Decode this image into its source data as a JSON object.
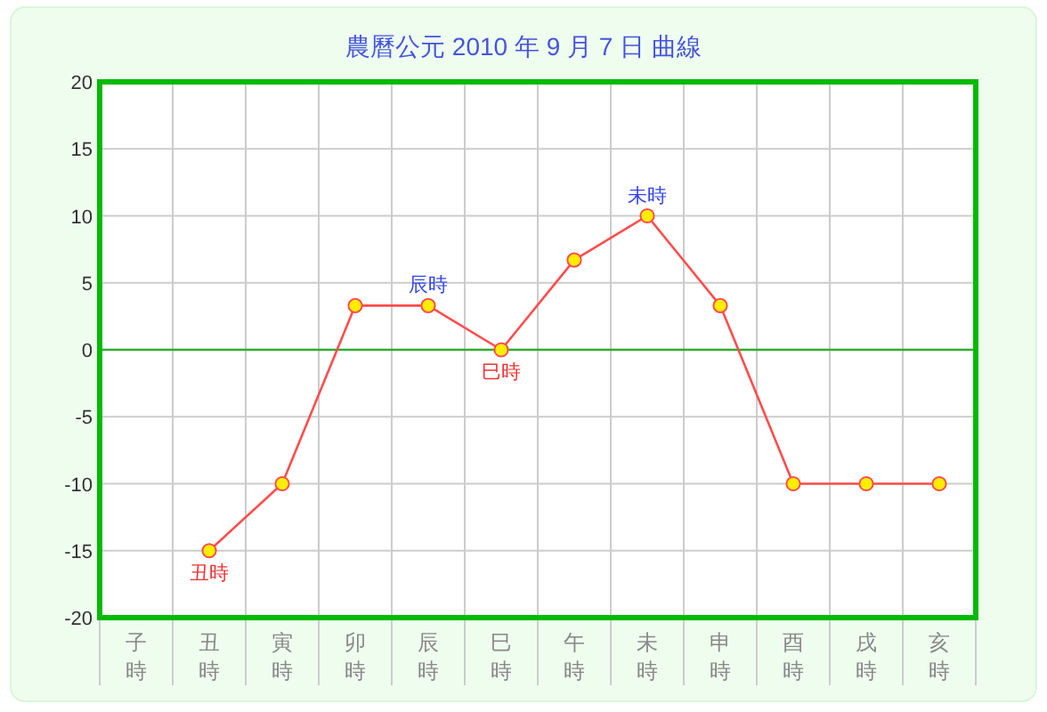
{
  "chart_data": {
    "type": "line",
    "title": "農曆公元 2010 年 9 月 7 日 曲線",
    "categories": [
      "子時",
      "丑時",
      "寅時",
      "卯時",
      "辰時",
      "巳時",
      "午時",
      "未時",
      "申時",
      "酉時",
      "戌時",
      "亥時"
    ],
    "series": [
      {
        "color": "#ff4d4d",
        "values": [
          null,
          -15,
          -10,
          3.3,
          3.3,
          0,
          6.7,
          10,
          3.3,
          -10,
          -10,
          -10
        ]
      }
    ],
    "ylim": [
      -20,
      20
    ],
    "yticks": [
      -20,
      -15,
      -10,
      -5,
      0,
      5,
      10,
      15,
      20
    ],
    "grid": true,
    "marker": "circle",
    "ref_lines": [
      {
        "axis": "y",
        "value": 0,
        "color": "#33aa33"
      }
    ],
    "annotations": [
      {
        "text": "丑時",
        "x": "丑時",
        "y": -15
      },
      {
        "text": "辰時",
        "x": "辰時",
        "y": 3.3
      },
      {
        "text": "巳時",
        "x": "巳時",
        "y": 0
      },
      {
        "text": "未時",
        "x": "未時",
        "y": 10
      }
    ]
  }
}
